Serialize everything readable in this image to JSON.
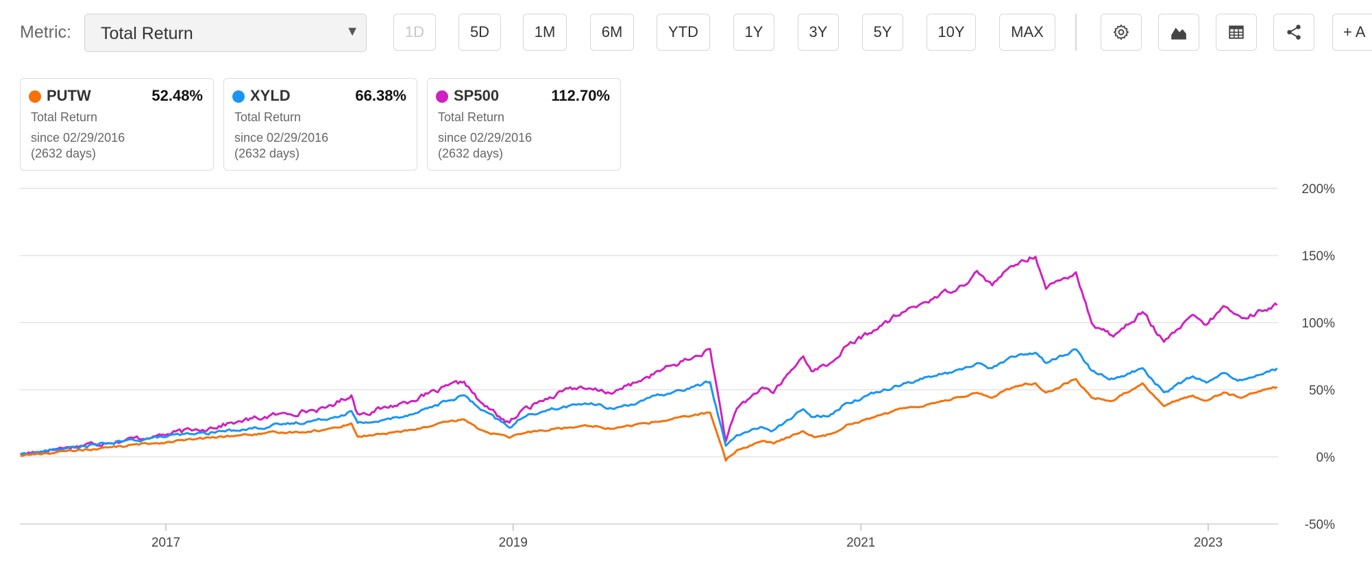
{
  "toolbar": {
    "metric_label": "Metric:",
    "metric_value": "Total Return",
    "periods": [
      {
        "label": "1D",
        "disabled": true
      },
      {
        "label": "5D"
      },
      {
        "label": "1M"
      },
      {
        "label": "6M"
      },
      {
        "label": "YTD"
      },
      {
        "label": "1Y"
      },
      {
        "label": "3Y"
      },
      {
        "label": "5Y"
      },
      {
        "label": "10Y"
      },
      {
        "label": "MAX"
      }
    ],
    "icons": [
      "gear-icon",
      "area-chart-icon",
      "table-icon",
      "share-icon"
    ],
    "add_label": "+ A"
  },
  "cards": [
    {
      "ticker": "PUTW",
      "value": "52.48%",
      "type": "Total Return",
      "since": "since 02/29/2016",
      "days": "(2632 days)",
      "color": "#f5720a"
    },
    {
      "ticker": "XYLD",
      "value": "66.38%",
      "type": "Total Return",
      "since": "since 02/29/2016",
      "days": "(2632 days)",
      "color": "#1a95f3"
    },
    {
      "ticker": "SP500",
      "value": "112.70%",
      "type": "Total Return",
      "since": "since 02/29/2016",
      "days": "(2632 days)",
      "color": "#d020c0"
    }
  ],
  "chart_data": {
    "type": "line",
    "title": "",
    "xlabel": "",
    "ylabel": "",
    "x_ticks": [
      "2017",
      "2019",
      "2021",
      "2023"
    ],
    "y_ticks": [
      "200%",
      "150%",
      "100%",
      "50%",
      "0%",
      "-50%"
    ],
    "ylim": [
      -50,
      200
    ],
    "grid": true,
    "x_dates": [
      "2016-03-01",
      "2016-06-01",
      "2016-09-01",
      "2016-12-01",
      "2017-03-01",
      "2017-06-01",
      "2017-09-01",
      "2017-12-01",
      "2018-01-26",
      "2018-02-08",
      "2018-04-01",
      "2018-06-01",
      "2018-09-20",
      "2018-10-25",
      "2018-12-24",
      "2019-01-15",
      "2019-03-01",
      "2019-05-01",
      "2019-06-01",
      "2019-08-01",
      "2019-10-01",
      "2019-12-01",
      "2020-01-15",
      "2020-02-19",
      "2020-03-23",
      "2020-04-15",
      "2020-06-08",
      "2020-07-01",
      "2020-09-02",
      "2020-09-23",
      "2020-10-30",
      "2020-12-01",
      "2021-02-01",
      "2021-04-01",
      "2021-06-01",
      "2021-08-01",
      "2021-09-02",
      "2021-10-04",
      "2021-11-01",
      "2021-12-01",
      "2022-01-03",
      "2022-01-25",
      "2022-03-29",
      "2022-05-01",
      "2022-06-16",
      "2022-08-16",
      "2022-09-30",
      "2022-11-30",
      "2022-12-28",
      "2023-02-02",
      "2023-03-13",
      "2023-04-30",
      "2023-05-26"
    ],
    "series": [
      {
        "name": "PUTW",
        "color": "#f5720a",
        "values": [
          1,
          4,
          7,
          10,
          13,
          16,
          18,
          20,
          25,
          15,
          17,
          20,
          28,
          20,
          14,
          17,
          20,
          22,
          24,
          21,
          25,
          28,
          31,
          33,
          -3,
          5,
          12,
          10,
          19,
          15,
          17,
          24,
          30,
          36,
          40,
          45,
          48,
          44,
          50,
          53,
          55,
          48,
          58,
          44,
          42,
          55,
          38,
          46,
          42,
          48,
          44,
          50,
          52
        ]
      },
      {
        "name": "XYLD",
        "color": "#1a95f3",
        "values": [
          2,
          6,
          10,
          14,
          17,
          20,
          24,
          28,
          34,
          25,
          27,
          32,
          46,
          35,
          22,
          28,
          34,
          38,
          40,
          36,
          42,
          48,
          52,
          56,
          8,
          16,
          22,
          20,
          35,
          30,
          32,
          40,
          48,
          55,
          60,
          65,
          70,
          66,
          72,
          76,
          78,
          70,
          80,
          64,
          58,
          66,
          48,
          60,
          55,
          62,
          57,
          63,
          66
        ]
      },
      {
        "name": "SP500",
        "color": "#d020c0",
        "values": [
          2,
          7,
          11,
          15,
          20,
          26,
          32,
          36,
          46,
          32,
          36,
          42,
          56,
          40,
          25,
          33,
          42,
          52,
          50,
          48,
          58,
          68,
          74,
          80,
          12,
          35,
          52,
          48,
          75,
          64,
          70,
          82,
          95,
          108,
          118,
          128,
          138,
          128,
          138,
          145,
          150,
          125,
          138,
          100,
          90,
          108,
          85,
          105,
          98,
          112,
          103,
          110,
          113
        ]
      }
    ]
  }
}
